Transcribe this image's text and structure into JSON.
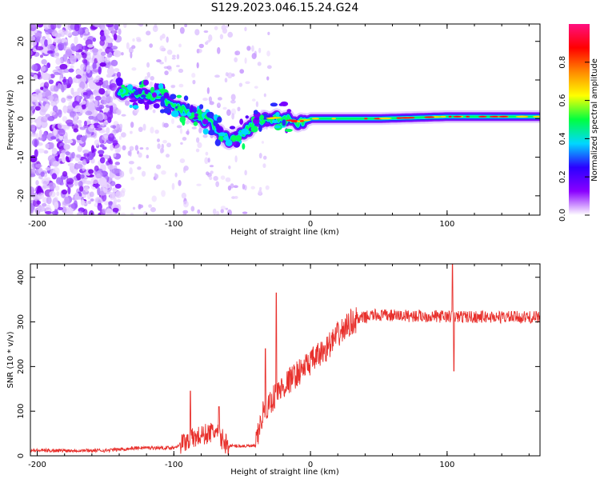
{
  "figure_title": "S129.2023.046.15.24.G24",
  "chart_data": [
    {
      "type": "heatmap",
      "name": "spectrogram",
      "xlabel": "Height of straight line (km)",
      "ylabel": "Frequency (Hz)",
      "xlim": [
        -205,
        168
      ],
      "ylim": [
        -25,
        24.5
      ],
      "xticks": [
        -200,
        -100,
        0,
        100
      ],
      "yticks": [
        -20,
        -10,
        0,
        10,
        20
      ],
      "ridge": [
        {
          "x": -140,
          "y": 7
        },
        {
          "x": -130,
          "y": 6.5
        },
        {
          "x": -120,
          "y": 6
        },
        {
          "x": -110,
          "y": 5.5
        },
        {
          "x": -100,
          "y": 3.5
        },
        {
          "x": -90,
          "y": 2
        },
        {
          "x": -80,
          "y": 0
        },
        {
          "x": -70,
          "y": -2
        },
        {
          "x": -60,
          "y": -6
        },
        {
          "x": -50,
          "y": -4
        },
        {
          "x": -40,
          "y": -1
        },
        {
          "x": -30,
          "y": 0
        },
        {
          "x": -20,
          "y": 0.5
        },
        {
          "x": -10,
          "y": -1
        },
        {
          "x": 0,
          "y": 0
        },
        {
          "x": 50,
          "y": 0
        },
        {
          "x": 100,
          "y": 0.5
        },
        {
          "x": 168,
          "y": 0.5
        }
      ],
      "colorbar": {
        "label": "Normalized spectral amplitude",
        "range": [
          0,
          1
        ],
        "ticks": [
          "0.0",
          "0.2",
          "0.4",
          "0.6",
          "0.8"
        ],
        "colors": [
          "#ffffff",
          "#8a00ff",
          "#2b00ff",
          "#00d8ff",
          "#00ff40",
          "#ffff00",
          "#ff8800",
          "#ff0000",
          "#ff1080"
        ]
      }
    },
    {
      "type": "line",
      "name": "snr",
      "xlabel": "Height of straight line (km)",
      "ylabel": "SNR (10 * v/v)",
      "xlim": [
        -205,
        168
      ],
      "ylim": [
        0,
        430
      ],
      "xticks": [
        -200,
        -100,
        0,
        100
      ],
      "yticks": [
        0,
        100,
        200,
        300,
        400
      ],
      "color": "#e8302c",
      "trend": [
        {
          "x": -205,
          "y": 12
        },
        {
          "x": -150,
          "y": 12
        },
        {
          "x": -125,
          "y": 18
        },
        {
          "x": -100,
          "y": 18
        },
        {
          "x": -90,
          "y": 35
        },
        {
          "x": -70,
          "y": 55
        },
        {
          "x": -60,
          "y": 22
        },
        {
          "x": -40,
          "y": 22
        },
        {
          "x": -35,
          "y": 95
        },
        {
          "x": -25,
          "y": 140
        },
        {
          "x": -15,
          "y": 170
        },
        {
          "x": 0,
          "y": 210
        },
        {
          "x": 10,
          "y": 235
        },
        {
          "x": 20,
          "y": 270
        },
        {
          "x": 30,
          "y": 300
        },
        {
          "x": 45,
          "y": 315
        },
        {
          "x": 100,
          "y": 312
        },
        {
          "x": 168,
          "y": 310
        }
      ],
      "spikes": [
        {
          "x": -88,
          "y": 145
        },
        {
          "x": -67,
          "y": 110
        },
        {
          "x": -33,
          "y": 240
        },
        {
          "x": -25,
          "y": 365
        },
        {
          "x": 104,
          "y": 430
        },
        {
          "x": 105,
          "y": 190
        }
      ]
    }
  ]
}
